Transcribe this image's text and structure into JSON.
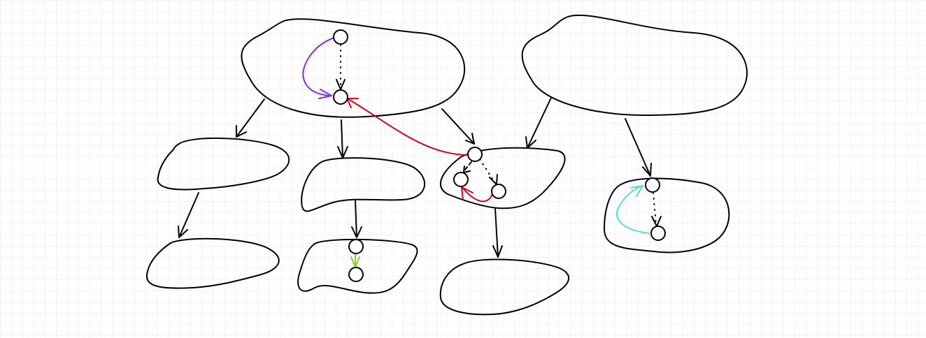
{
  "diagram": {
    "background_grid": true,
    "colors": {
      "stroke": "#000000",
      "grid": "#e6e6e6",
      "purple": "#8a2be2",
      "red": "#d0021b",
      "green": "#7ed321",
      "teal": "#50e3c2"
    },
    "regions": [
      {
        "id": "top-left-blob"
      },
      {
        "id": "top-right-blob"
      },
      {
        "id": "mid-left-blob"
      },
      {
        "id": "mid-center-blob"
      },
      {
        "id": "mid-right-blob"
      },
      {
        "id": "right-node-blob"
      },
      {
        "id": "bottom-left-blob"
      },
      {
        "id": "bottom-center-blob"
      },
      {
        "id": "bottom-right-blob"
      }
    ],
    "nodes": [
      {
        "id": "n1",
        "region": "top-left-blob"
      },
      {
        "id": "n2",
        "region": "top-left-blob"
      },
      {
        "id": "n3",
        "region": "mid-right-blob"
      },
      {
        "id": "n4",
        "region": "mid-right-blob"
      },
      {
        "id": "n5",
        "region": "mid-right-blob"
      },
      {
        "id": "n6",
        "region": "right-node-blob"
      },
      {
        "id": "n7",
        "region": "right-node-blob"
      },
      {
        "id": "n8",
        "region": "bottom-center-blob"
      },
      {
        "id": "n9",
        "region": "bottom-center-blob"
      }
    ],
    "edges": [
      {
        "from": "n1",
        "to": "n2",
        "style": "dotted",
        "color": "black"
      },
      {
        "from": "n1",
        "to": "n2",
        "style": "curved",
        "color": "purple"
      },
      {
        "from": "n3",
        "to": "n2",
        "style": "curved",
        "color": "red"
      },
      {
        "from": "n3",
        "to": "n4",
        "style": "dashed",
        "color": "black"
      },
      {
        "from": "n3",
        "to": "n5",
        "style": "dotted",
        "color": "black"
      },
      {
        "from": "n5",
        "to": "n4",
        "style": "curved",
        "color": "red"
      },
      {
        "from": "n6",
        "to": "n7",
        "style": "dotted",
        "color": "black"
      },
      {
        "from": "n7",
        "to": "n6",
        "style": "curved",
        "color": "teal"
      },
      {
        "from": "n8",
        "to": "n9",
        "style": "straight",
        "color": "green"
      }
    ]
  }
}
